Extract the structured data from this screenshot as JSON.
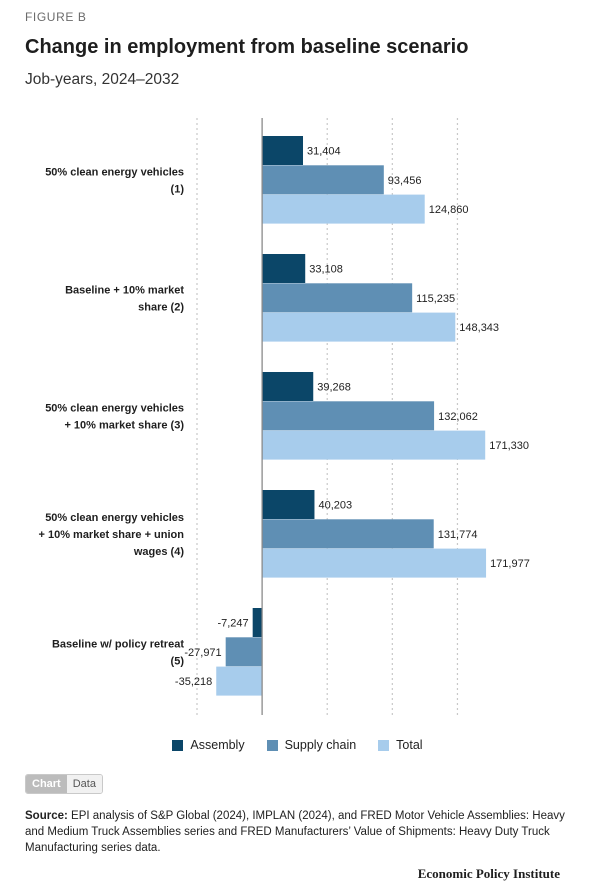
{
  "figure_label": "FIGURE B",
  "title": "Change in employment from baseline scenario",
  "subtitle": "Job-years, 2024–2032",
  "toggle": {
    "chart_label": "Chart",
    "data_label": "Data"
  },
  "source": {
    "prefix": "Source:",
    "text": " EPI analysis of S&P Global (2024), IMPLAN (2024), and FRED Motor Vehicle Assemblies: Heavy and Medium Truck Assemblies series and FRED Manufacturers’ Value of Shipments: Heavy Duty Truck Manufacturing series data."
  },
  "brand": "Economic Policy Institute",
  "chart_data": {
    "type": "bar",
    "orientation": "horizontal",
    "categories": [
      [
        "50% clean energy vehicles",
        "(1)"
      ],
      [
        "Baseline + 10% market",
        "share (2)"
      ],
      [
        "50% clean energy vehicles",
        "+ 10% market share (3)"
      ],
      [
        "50% clean energy vehicles",
        "+ 10% market share + union",
        "wages (4)"
      ],
      [
        "Baseline w/ policy retreat",
        "(5)"
      ]
    ],
    "series": [
      {
        "name": "Assembly",
        "color": "#0b4668",
        "values": [
          31404,
          33108,
          39268,
          40203,
          -7247
        ],
        "labels": [
          "31,404",
          "33,108",
          "39,268",
          "40,203",
          "-7,247"
        ]
      },
      {
        "name": "Supply chain",
        "color": "#5f8fb4",
        "values": [
          93456,
          115235,
          132062,
          131774,
          -27971
        ],
        "labels": [
          "93,456",
          "115,235",
          "132,062",
          "131,774",
          "-27,971"
        ]
      },
      {
        "name": "Total",
        "color": "#a7ccec",
        "values": [
          124860,
          148343,
          171330,
          171977,
          -35218
        ],
        "labels": [
          "124,860",
          "148,343",
          "171,330",
          "171,977",
          "-35,218"
        ]
      }
    ],
    "xlim": [
      -50000,
      175000
    ],
    "gridlines": [
      -50000,
      0,
      50000,
      100000,
      150000
    ],
    "grid": true,
    "legend_position": "bottom"
  }
}
